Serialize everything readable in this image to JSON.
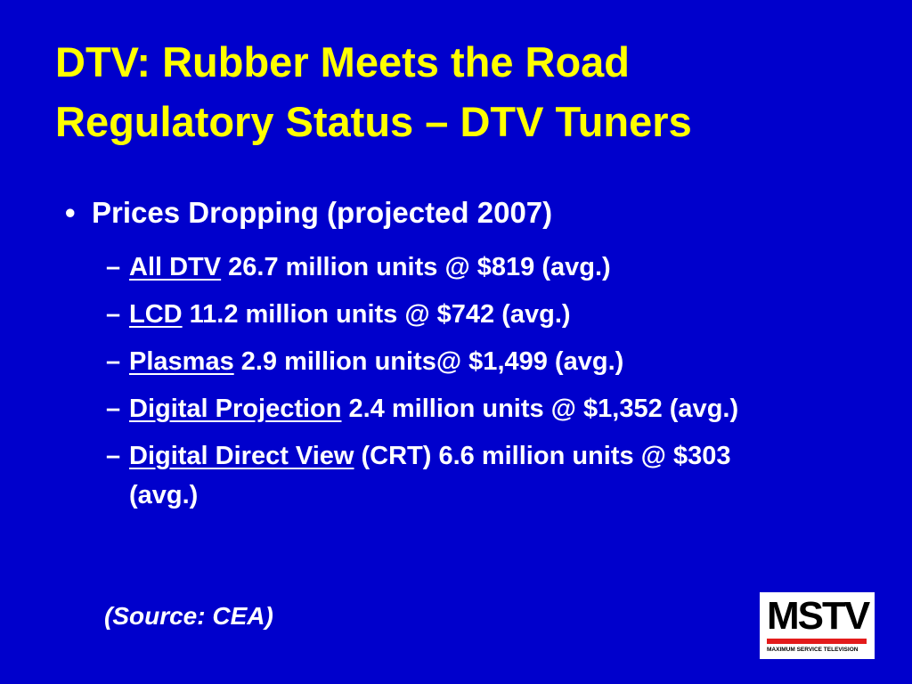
{
  "slide": {
    "title": [
      "DTV: Rubber Meets the Road",
      "Regulatory Status – DTV Tuners"
    ],
    "bullet": "Prices Dropping (projected 2007)",
    "items": [
      {
        "label": "All DTV",
        "text": "26.7 million units @ $819 (avg.)"
      },
      {
        "label": "LCD",
        "text": "11.2 million units @ $742 (avg.)"
      },
      {
        "label": "Plasmas",
        "text": "2.9 million units@ $1,499 (avg.)"
      },
      {
        "label": "Digital Projection",
        "text": "2.4 million units @ $1,352 (avg.)"
      },
      {
        "label": "Digital Direct View",
        "text": "(CRT) 6.6 million units @ $303 (avg.)"
      }
    ],
    "source": "(Source: CEA)",
    "logo": {
      "mark": "MSTV",
      "caption": "MAXIMUM SERVICE TELEVISION"
    }
  }
}
